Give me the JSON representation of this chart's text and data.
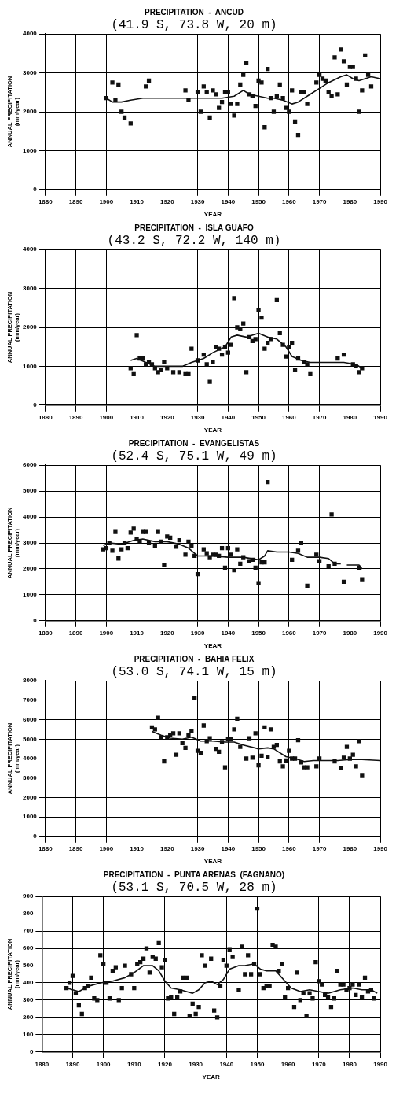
{
  "chart_data": [
    {
      "type": "scatter",
      "title": "PRECIPITATION  -  ANCUD",
      "subtitle": "(41.9 S, 73.8 W, 20 m)",
      "xlabel": "YEAR",
      "ylabel": "ANNUAL PRECIPITATION\n(mm/year)",
      "xlim": [
        1880,
        1990
      ],
      "xticks": [
        1880,
        1890,
        1900,
        1910,
        1920,
        1930,
        1940,
        1950,
        1960,
        1970,
        1980,
        1990
      ],
      "ylim": [
        0,
        4000
      ],
      "yticks": [
        0,
        1000,
        2000,
        3000,
        4000
      ],
      "grid": true,
      "legend": false,
      "series": [
        {
          "type": "scatter",
          "marker": "square",
          "color": "#111111",
          "x": [
            1900,
            1902,
            1903,
            1904,
            1905,
            1906,
            1908,
            1913,
            1914,
            1926,
            1927,
            1930,
            1931,
            1932,
            1933,
            1934,
            1935,
            1936,
            1937,
            1938,
            1939,
            1940,
            1941,
            1942,
            1943,
            1944,
            1945,
            1946,
            1947,
            1948,
            1949,
            1950,
            1951,
            1952,
            1953,
            1954,
            1955,
            1956,
            1957,
            1958,
            1959,
            1960,
            1961,
            1962,
            1963,
            1964,
            1965,
            1966,
            1969,
            1970,
            1971,
            1972,
            1973,
            1974,
            1975,
            1976,
            1977,
            1978,
            1979,
            1980,
            1981,
            1982,
            1983,
            1984,
            1985,
            1986,
            1987
          ],
          "values": [
            2350,
            2750,
            2300,
            2700,
            2000,
            1850,
            1700,
            2650,
            2800,
            2550,
            2300,
            2500,
            2000,
            2650,
            2500,
            1850,
            2550,
            2450,
            2100,
            2250,
            2500,
            2500,
            2200,
            1900,
            2200,
            2700,
            2950,
            3250,
            2450,
            2400,
            2150,
            2800,
            2750,
            1600,
            3100,
            2350,
            2000,
            2400,
            2700,
            2350,
            2100,
            2000,
            2550,
            1750,
            1400,
            2500,
            2500,
            2200,
            2750,
            2950,
            2850,
            2800,
            2500,
            2400,
            3400,
            2450,
            3600,
            3300,
            2700,
            3150,
            3150,
            2850,
            2000,
            2550,
            3450,
            2950,
            2650
          ]
        },
        {
          "type": "line",
          "marker": "none",
          "color": "#111111",
          "x": [
            1900,
            1902,
            1905,
            1908,
            1912,
            1920,
            1930,
            1938,
            1942,
            1945,
            1947,
            1950,
            1953,
            1955,
            1958,
            1961,
            1963,
            1967,
            1970,
            1973,
            1977,
            1979,
            1981,
            1983,
            1985,
            1987,
            1990
          ],
          "values": [
            2350,
            2250,
            2250,
            2300,
            2350,
            2350,
            2350,
            2350,
            2400,
            2550,
            2450,
            2400,
            2350,
            2350,
            2300,
            2200,
            2250,
            2450,
            2600,
            2750,
            2900,
            2950,
            2850,
            2800,
            2850,
            2900,
            2850
          ]
        }
      ]
    },
    {
      "type": "scatter",
      "title": "PRECIPITATION  -  ISLA GUAFO",
      "subtitle": "(43.2 S, 72.2 W, 140 m)",
      "xlabel": "YEAR",
      "ylabel": "ANNUAL PRECIPITATION\n(mm/year)",
      "xlim": [
        1880,
        1990
      ],
      "xticks": [
        1880,
        1890,
        1900,
        1910,
        1920,
        1930,
        1940,
        1950,
        1960,
        1970,
        1980,
        1990
      ],
      "ylim": [
        0,
        4000
      ],
      "yticks": [
        0,
        1000,
        2000,
        3000,
        4000
      ],
      "grid": true,
      "legend": false,
      "series": [
        {
          "type": "scatter",
          "marker": "square",
          "color": "#111111",
          "x": [
            1908,
            1909,
            1910,
            1911,
            1912,
            1913,
            1914,
            1915,
            1916,
            1917,
            1918,
            1919,
            1920,
            1922,
            1924,
            1926,
            1927,
            1928,
            1930,
            1932,
            1933,
            1934,
            1935,
            1936,
            1937,
            1938,
            1939,
            1940,
            1941,
            1942,
            1943,
            1944,
            1945,
            1946,
            1947,
            1948,
            1949,
            1950,
            1951,
            1952,
            1953,
            1954,
            1956,
            1957,
            1958,
            1959,
            1960,
            1961,
            1962,
            1963,
            1965,
            1966,
            1967,
            1976,
            1978,
            1981,
            1982,
            1983,
            1984
          ],
          "values": [
            950,
            800,
            1800,
            1200,
            1200,
            1050,
            1100,
            1050,
            950,
            850,
            900,
            1100,
            950,
            850,
            850,
            800,
            800,
            1450,
            1150,
            1300,
            1050,
            600,
            1100,
            1500,
            1450,
            1300,
            1500,
            1350,
            1550,
            2750,
            2000,
            1950,
            2100,
            850,
            1750,
            1650,
            1700,
            2450,
            2250,
            1450,
            1600,
            1700,
            2700,
            1850,
            1550,
            1250,
            1500,
            1600,
            900,
            1200,
            1100,
            1050,
            800,
            1200,
            1300,
            1050,
            1000,
            850,
            950
          ]
        },
        {
          "type": "line",
          "marker": "none",
          "color": "#111111",
          "x": [
            1908,
            1910,
            1913,
            1916,
            1920,
            1925,
            1928,
            1932,
            1935,
            1939,
            1941,
            1943,
            1946,
            1950,
            1953,
            1956,
            1959,
            1961,
            1964,
            1967,
            1975,
            1978,
            1982,
            1984
          ],
          "values": [
            1150,
            1200,
            1100,
            1000,
            1000,
            1000,
            1100,
            1200,
            1350,
            1500,
            1750,
            1800,
            1750,
            1850,
            1750,
            1700,
            1500,
            1250,
            1150,
            1100,
            1100,
            1100,
            1050,
            950
          ]
        }
      ]
    },
    {
      "type": "scatter",
      "title": "PRECIPITATION  -  EVANGELISTAS",
      "subtitle": "(52.4 S, 75.1 W, 49 m)",
      "xlabel": "YEAR",
      "ylabel": "ANNUAL PRECIPITATION\n(mm/year)",
      "xlim": [
        1880,
        1990
      ],
      "xticks": [
        1880,
        1890,
        1900,
        1910,
        1920,
        1930,
        1940,
        1950,
        1960,
        1970,
        1980,
        1990
      ],
      "ylim": [
        0,
        6000
      ],
      "yticks": [
        0,
        1000,
        2000,
        3000,
        4000,
        5000,
        6000
      ],
      "grid": true,
      "legend": false,
      "series": [
        {
          "type": "scatter",
          "marker": "square",
          "color": "#111111",
          "x": [
            1899,
            1900,
            1901,
            1902,
            1903,
            1904,
            1905,
            1906,
            1907,
            1908,
            1909,
            1910,
            1911,
            1912,
            1913,
            1914,
            1916,
            1917,
            1918,
            1919,
            1920,
            1921,
            1923,
            1924,
            1926,
            1927,
            1928,
            1929,
            1930,
            1932,
            1933,
            1934,
            1935,
            1936,
            1937,
            1938,
            1939,
            1940,
            1941,
            1942,
            1943,
            1944,
            1945,
            1947,
            1948,
            1949,
            1950,
            1951,
            1952,
            1953,
            1961,
            1963,
            1964,
            1966,
            1969,
            1970,
            1973,
            1974,
            1975,
            1978,
            1983,
            1984
          ],
          "values": [
            2750,
            2800,
            3000,
            2700,
            3450,
            2400,
            2750,
            3000,
            2800,
            3400,
            3550,
            3150,
            3050,
            3450,
            3450,
            3000,
            2900,
            3450,
            3050,
            2150,
            3250,
            3200,
            2850,
            3100,
            2550,
            3050,
            2900,
            2500,
            1800,
            2750,
            2600,
            2450,
            2550,
            2550,
            2500,
            2800,
            2050,
            2800,
            2550,
            1950,
            2750,
            2200,
            2450,
            2300,
            2350,
            2050,
            1450,
            2250,
            2250,
            5350,
            2350,
            2700,
            3000,
            1350,
            2550,
            2300,
            2100,
            4100,
            2200,
            1500,
            2050,
            1600
          ]
        },
        {
          "type": "line",
          "marker": "none",
          "color": "#111111",
          "x": [
            1899,
            1901,
            1905,
            1909,
            1912,
            1916,
            1920,
            1924,
            1927,
            1930,
            1935,
            1940,
            1945,
            1950,
            1952,
            1953,
            1956,
            1960,
            1963,
            1966,
            1970,
            1973,
            1975,
            1977,
            1978,
            1979,
            1983,
            1984
          ],
          "values": [
            2900,
            3000,
            2950,
            3100,
            3150,
            3050,
            3050,
            2950,
            2800,
            2500,
            2500,
            2450,
            2450,
            2350,
            2500,
            2700,
            2650,
            2650,
            2600,
            2450,
            2450,
            2400,
            2200,
            2200,
            null,
            2150,
            2150,
            2000
          ]
        }
      ]
    },
    {
      "type": "scatter",
      "title": "PRECIPITATION  -  BAHIA FELIX",
      "subtitle": "(53.0 S, 74.1 W, 15 m)",
      "xlabel": "YEAR",
      "ylabel": "ANNUAL PRECIPITATION\n(mm/year)",
      "xlim": [
        1880,
        1990
      ],
      "xticks": [
        1880,
        1890,
        1900,
        1910,
        1920,
        1930,
        1940,
        1950,
        1960,
        1970,
        1980,
        1990
      ],
      "ylim": [
        0,
        8000
      ],
      "yticks": [
        0,
        1000,
        2000,
        3000,
        4000,
        5000,
        6000,
        7000,
        8000
      ],
      "grid": true,
      "legend": false,
      "series": [
        {
          "type": "scatter",
          "marker": "square",
          "color": "#111111",
          "x": [
            1915,
            1916,
            1917,
            1918,
            1919,
            1920,
            1921,
            1922,
            1923,
            1924,
            1925,
            1926,
            1927,
            1928,
            1929,
            1930,
            1931,
            1932,
            1933,
            1934,
            1936,
            1937,
            1938,
            1939,
            1940,
            1941,
            1942,
            1943,
            1944,
            1946,
            1947,
            1948,
            1949,
            1950,
            1951,
            1952,
            1953,
            1954,
            1955,
            1956,
            1957,
            1958,
            1959,
            1960,
            1961,
            1962,
            1963,
            1964,
            1965,
            1966,
            1969,
            1970,
            1975,
            1977,
            1978,
            1979,
            1980,
            1981,
            1982,
            1983,
            1984
          ],
          "values": [
            5600,
            5500,
            6100,
            5100,
            3850,
            5100,
            5200,
            5300,
            4200,
            5300,
            4800,
            4550,
            5200,
            5400,
            7100,
            4400,
            4300,
            5700,
            4900,
            5050,
            4500,
            4350,
            4850,
            3550,
            5000,
            5000,
            5500,
            6050,
            4600,
            4000,
            5050,
            4050,
            5300,
            3650,
            4150,
            5600,
            4100,
            5500,
            4600,
            4700,
            3850,
            3600,
            3900,
            4400,
            4000,
            4000,
            4950,
            3800,
            3550,
            3550,
            3600,
            4000,
            3850,
            3500,
            4050,
            4600,
            4000,
            4200,
            3600,
            4900,
            3150
          ]
        },
        {
          "type": "line",
          "marker": "none",
          "color": "#111111",
          "x": [
            1915,
            1918,
            1921,
            1925,
            1928,
            1931,
            1935,
            1939,
            1942,
            1945,
            1950,
            1953,
            1955,
            1959,
            1962,
            1965,
            1968,
            1972,
            1976,
            1980,
            1984,
            1990
          ],
          "values": [
            5400,
            5200,
            5050,
            5000,
            5100,
            4900,
            4900,
            4850,
            4850,
            4700,
            4500,
            4550,
            4500,
            4100,
            4000,
            3850,
            3900,
            3900,
            3900,
            3950,
            3950,
            3900
          ]
        }
      ]
    },
    {
      "type": "scatter",
      "title": "PRECIPITATION  -  PUNTA ARENAS  (FAGNANO)",
      "subtitle": "(53.1 S, 70.5 W, 28 m)",
      "xlabel": "YEAR",
      "ylabel": "ANNUAL PRECIPITATION\n(mm/year)",
      "xlim": [
        1880,
        1990
      ],
      "xticks": [
        1880,
        1890,
        1900,
        1910,
        1920,
        1930,
        1940,
        1950,
        1960,
        1970,
        1980,
        1990
      ],
      "ylim": [
        0,
        900
      ],
      "yticks": [
        0,
        100,
        200,
        300,
        400,
        500,
        600,
        700,
        800,
        900
      ],
      "grid": true,
      "legend": false,
      "series": [
        {
          "type": "scatter",
          "marker": "square",
          "color": "#111111",
          "x": [
            1888,
            1889,
            1890,
            1891,
            1892,
            1893,
            1894,
            1895,
            1896,
            1897,
            1898,
            1899,
            1900,
            1901,
            1902,
            1903,
            1904,
            1905,
            1906,
            1907,
            1909,
            1910,
            1911,
            1912,
            1913,
            1914,
            1915,
            1916,
            1917,
            1918,
            1919,
            1920,
            1921,
            1922,
            1923,
            1924,
            1925,
            1926,
            1927,
            1928,
            1929,
            1930,
            1931,
            1932,
            1933,
            1935,
            1936,
            1937,
            1938,
            1939,
            1940,
            1941,
            1942,
            1944,
            1945,
            1946,
            1947,
            1948,
            1949,
            1950,
            1951,
            1952,
            1953,
            1954,
            1955,
            1956,
            1957,
            1958,
            1959,
            1960,
            1962,
            1963,
            1964,
            1965,
            1966,
            1967,
            1968,
            1969,
            1970,
            1971,
            1972,
            1973,
            1974,
            1975,
            1976,
            1977,
            1978,
            1979,
            1980,
            1981,
            1982,
            1983,
            1984,
            1985,
            1986,
            1987,
            1988
          ],
          "values": [
            370,
            400,
            440,
            340,
            270,
            220,
            370,
            380,
            430,
            310,
            300,
            560,
            510,
            400,
            310,
            470,
            490,
            300,
            370,
            500,
            450,
            370,
            510,
            520,
            540,
            600,
            460,
            550,
            540,
            630,
            490,
            530,
            310,
            320,
            220,
            320,
            350,
            430,
            430,
            210,
            280,
            220,
            260,
            560,
            500,
            540,
            240,
            200,
            380,
            530,
            500,
            590,
            550,
            360,
            610,
            450,
            560,
            450,
            510,
            830,
            450,
            370,
            380,
            380,
            620,
            610,
            470,
            510,
            320,
            370,
            260,
            460,
            300,
            340,
            210,
            340,
            310,
            520,
            410,
            390,
            330,
            320,
            260,
            310,
            470,
            390,
            390,
            360,
            370,
            390,
            330,
            390,
            320,
            430,
            350,
            360,
            310
          ]
        },
        {
          "type": "line",
          "marker": "none",
          "color": "#111111",
          "x": [
            1888,
            1890,
            1892,
            1895,
            1899,
            1903,
            1907,
            1910,
            1913,
            1916,
            1918,
            1920,
            1922,
            1925,
            1929,
            1931,
            1933,
            1935,
            1937,
            1939,
            1941,
            1944,
            1946,
            1949,
            1951,
            1953,
            1956,
            1959,
            1961,
            1964,
            1967,
            1970,
            1973,
            1977,
            1981,
            1984,
            1987,
            1989
          ],
          "values": [
            370,
            360,
            350,
            380,
            400,
            410,
            430,
            460,
            500,
            500,
            470,
            410,
            370,
            360,
            340,
            360,
            400,
            410,
            390,
            420,
            480,
            500,
            500,
            510,
            480,
            470,
            470,
            410,
            370,
            350,
            360,
            350,
            340,
            360,
            370,
            360,
            360,
            340
          ]
        }
      ]
    }
  ]
}
